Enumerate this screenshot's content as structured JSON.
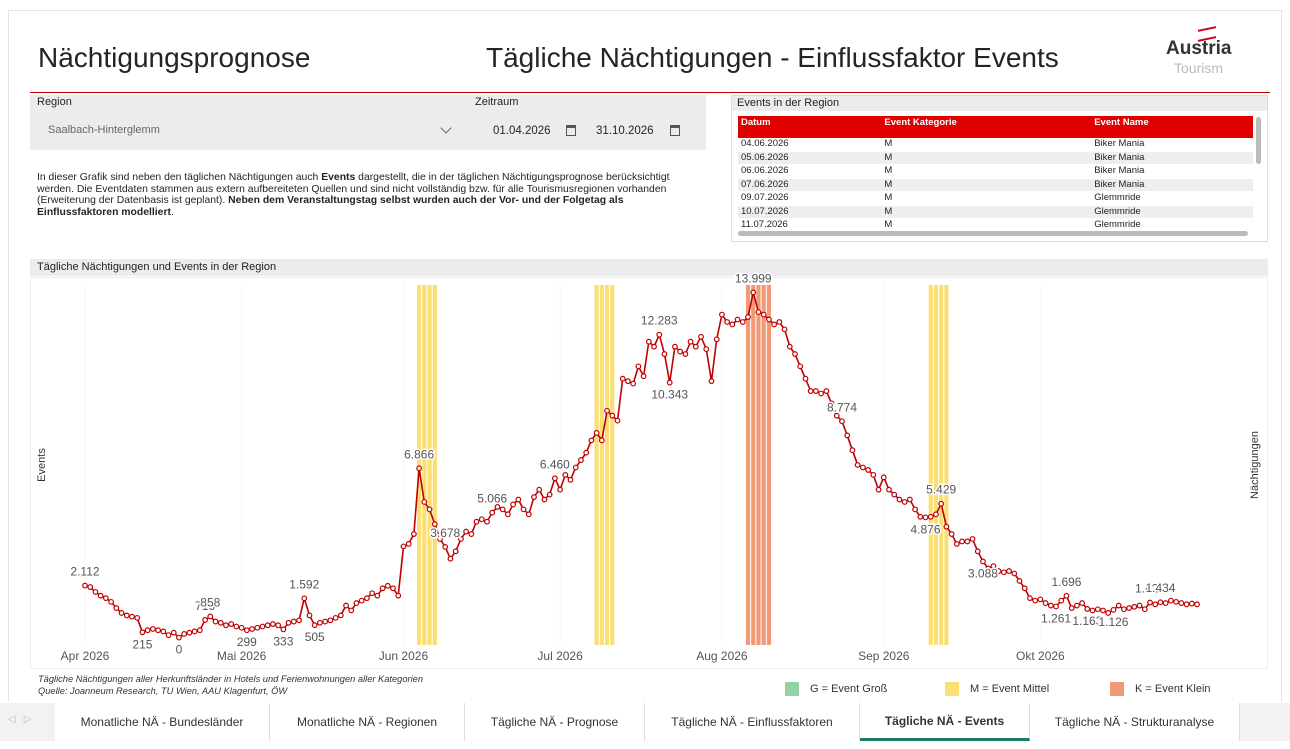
{
  "header": {
    "title": "Nächtigungsprognose",
    "page_title": "Tägliche Nächtigungen - Einflussfaktor Events",
    "logo": [
      "Austria",
      "Tourism"
    ]
  },
  "filters": {
    "region_label": "Region",
    "region_value": "Saalbach-Hinterglemm",
    "period_label": "Zeitraum",
    "period_start": "01.04.2026",
    "period_end": "31.10.2026"
  },
  "description": [
    "In dieser Grafik sind neben den täglichen Nächtigungen auch ",
    "Events",
    " dargestellt, die in der täglichen Nächtigungsprognose berücksichtigt werden. Die Eventdaten stammen aus extern aufbereiteten Quellen und sind nicht vollständig bzw. für alle Tourismusregionen vorhanden (Erweiterung der Datenbasis ist geplant). ",
    "Neben dem Veranstaltungstag selbst wurden auch der Vor- und der Folgetag als Einflussfaktoren modelliert",
    "."
  ],
  "events_table": {
    "title": "Events in der Region",
    "columns": [
      "Datum",
      "Event Kategorie",
      "Event Name"
    ],
    "rows": [
      [
        "04.06.2026",
        "M",
        "Biker Mania"
      ],
      [
        "05.06.2026",
        "M",
        "Biker Mania"
      ],
      [
        "06.06.2026",
        "M",
        "Biker Mania"
      ],
      [
        "07.06.2026",
        "M",
        "Biker Mania"
      ],
      [
        "09.07.2026",
        "M",
        "Glemmride"
      ],
      [
        "10.07.2026",
        "M",
        "Glemmride"
      ],
      [
        "11.07.2026",
        "M",
        "Glemmride"
      ]
    ]
  },
  "chart_data": {
    "type": "line",
    "title": "Tägliche Nächtigungen und Events in der Region",
    "y_label": "Events",
    "y2_label": "Nächtigungen",
    "color": "#c00000",
    "grid": true,
    "xlim": [
      0,
      213
    ],
    "xticks": [
      {
        "value": 0,
        "label": "Apr 2026"
      },
      {
        "value": 30,
        "label": "Mai 2026"
      },
      {
        "value": 61,
        "label": "Jun 2026"
      },
      {
        "value": 91,
        "label": "Jul 2026"
      },
      {
        "value": 122,
        "label": "Aug 2026"
      },
      {
        "value": 153,
        "label": "Sep 2026"
      },
      {
        "value": 183,
        "label": "Okt 2026"
      }
    ],
    "ylim": [
      -300,
      14300
    ],
    "values": [
      2112,
      2050,
      1850,
      1700,
      1600,
      1450,
      1200,
      1000,
      900,
      850,
      800,
      215,
      300,
      350,
      300,
      250,
      100,
      200,
      0,
      150,
      200,
      250,
      300,
      716,
      858,
      650,
      600,
      500,
      550,
      450,
      400,
      299,
      350,
      400,
      450,
      500,
      550,
      500,
      333,
      600,
      650,
      700,
      1592,
      900,
      505,
      600,
      650,
      700,
      800,
      900,
      1300,
      1100,
      1400,
      1500,
      1600,
      1800,
      1700,
      2000,
      2100,
      2000,
      1700,
      3700,
      3800,
      4200,
      6866,
      5500,
      5200,
      4600,
      4000,
      3678,
      3200,
      3500,
      4000,
      4300,
      4200,
      4700,
      4800,
      4700,
      5066,
      5300,
      5200,
      5000,
      5400,
      5600,
      5200,
      5000,
      5700,
      6000,
      5600,
      5800,
      6460,
      6000,
      6600,
      6400,
      6900,
      7200,
      7500,
      8000,
      8300,
      8000,
      9200,
      9000,
      8800,
      10500,
      10400,
      10300,
      11000,
      10600,
      12000,
      11800,
      12283,
      11500,
      10343,
      11800,
      11600,
      11500,
      12000,
      11800,
      12200,
      11700,
      10400,
      12100,
      13100,
      12800,
      12700,
      12900,
      12800,
      13000,
      13999,
      13200,
      13100,
      12900,
      12700,
      12800,
      12500,
      11800,
      11500,
      11000,
      10500,
      10000,
      10000,
      9900,
      10000,
      9500,
      9000,
      8774,
      8200,
      7600,
      7000,
      6900,
      6800,
      6600,
      6000,
      6500,
      6000,
      5800,
      5600,
      5500,
      5600,
      5200,
      4900,
      4876,
      4900,
      5000,
      5429,
      4500,
      4200,
      3800,
      3900,
      3900,
      4000,
      3500,
      3088,
      2800,
      2900,
      2700,
      2650,
      2700,
      2600,
      2300,
      2000,
      1600,
      1500,
      1550,
      1400,
      1300,
      1261,
      1500,
      1696,
      1200,
      1300,
      1400,
      1163,
      1100,
      1150,
      1100,
      1000,
      1126,
      1300,
      1150,
      1200,
      1250,
      1300,
      1150,
      1422,
      1350,
      1434,
      1400,
      1500,
      1450,
      1400,
      1350,
      1380,
      1350
    ],
    "value_labels": [
      "2.112",
      null,
      null,
      null,
      null,
      null,
      null,
      null,
      null,
      null,
      null,
      "215",
      null,
      null,
      null,
      null,
      null,
      null,
      "0",
      null,
      null,
      null,
      null,
      "716",
      "858",
      null,
      null,
      null,
      null,
      null,
      null,
      "299",
      null,
      null,
      null,
      null,
      null,
      null,
      "333",
      null,
      null,
      null,
      "1.592",
      null,
      "505",
      null,
      null,
      null,
      null,
      null,
      null,
      null,
      null,
      null,
      null,
      null,
      null,
      null,
      null,
      null,
      null,
      null,
      null,
      null,
      "6.866",
      null,
      null,
      null,
      null,
      "3.678",
      null,
      null,
      null,
      null,
      null,
      null,
      null,
      null,
      "5.066",
      null,
      null,
      null,
      null,
      null,
      null,
      null,
      null,
      null,
      null,
      null,
      "6.460",
      null,
      null,
      null,
      null,
      null,
      null,
      null,
      null,
      null,
      null,
      null,
      null,
      null,
      null,
      null,
      null,
      null,
      null,
      null,
      "12.283",
      null,
      "10.343",
      null,
      null,
      null,
      null,
      null,
      null,
      null,
      null,
      null,
      null,
      null,
      null,
      null,
      null,
      null,
      "13.999",
      null,
      null,
      null,
      null,
      null,
      null,
      null,
      null,
      null,
      null,
      null,
      null,
      null,
      null,
      null,
      null,
      "8.774",
      null,
      null,
      null,
      null,
      null,
      null,
      null,
      null,
      null,
      null,
      null,
      null,
      null,
      null,
      null,
      "4.876",
      null,
      null,
      "5.429",
      null,
      null,
      null,
      null,
      null,
      null,
      null,
      "3.088",
      null,
      null,
      null,
      null,
      null,
      null,
      null,
      null,
      null,
      null,
      null,
      null,
      null,
      "1.261",
      null,
      "1.696",
      null,
      null,
      null,
      "1.163",
      null,
      null,
      null,
      null,
      "1.126",
      null,
      null,
      null,
      null,
      null,
      null,
      "1.422",
      null,
      "1.434",
      null,
      null,
      null,
      null,
      null,
      null,
      null
    ],
    "event_bands": [
      {
        "category": "M",
        "x": [
          64,
          65,
          66,
          67
        ]
      },
      {
        "category": "M",
        "x": [
          98,
          99,
          100,
          101
        ]
      },
      {
        "category": "K",
        "x": [
          127,
          128,
          129,
          130,
          131
        ]
      },
      {
        "category": "M",
        "x": [
          162,
          163,
          164,
          165
        ]
      }
    ],
    "legend": [
      {
        "category": "G",
        "label": "G = Event Groß",
        "color": "#93d2a3"
      },
      {
        "category": "M",
        "label": "M = Event Mittel",
        "color": "#fbdf72"
      },
      {
        "category": "K",
        "label": "K = Event Klein",
        "color": "#f29a76"
      }
    ]
  },
  "footnotes": [
    "Tägliche Nächtigungen aller Herkunftsländer in Hotels und Ferienwohnungen aller Kategorien",
    "Quelle: Joanneum Research, TU Wien, AAU Klagenfurt, ÖW"
  ],
  "tabs": [
    "Monatliche NÄ - Bundesländer",
    "Monatliche NÄ - Regionen",
    "Tägliche NÄ - Prognose",
    "Tägliche NÄ - Einflussfaktoren",
    "Tägliche NÄ - Events",
    "Tägliche NÄ - Strukturanalyse"
  ],
  "active_tab": 4
}
